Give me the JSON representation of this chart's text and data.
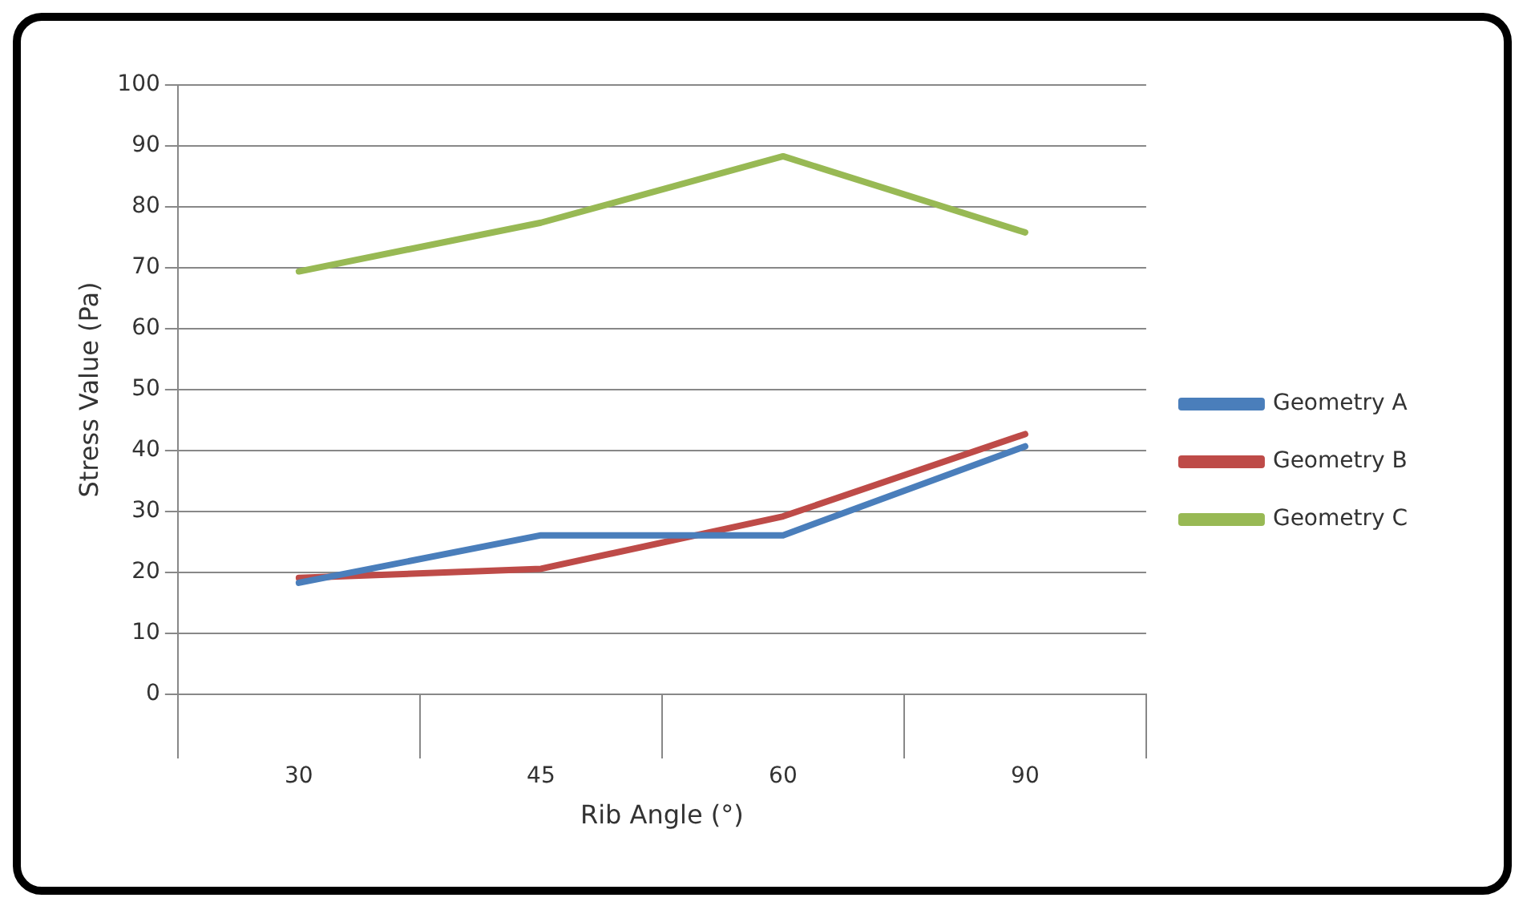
{
  "chart_data": {
    "type": "line",
    "xlabel": "Rib Angle (°)",
    "ylabel": "Stress Value (Pa)",
    "categories": [
      "30",
      "45",
      "60",
      "90"
    ],
    "series": [
      {
        "name": "Geometry A",
        "color": "#4a7ebb",
        "values": [
          18.3,
          26.1,
          26.1,
          40.7
        ]
      },
      {
        "name": "Geometry B",
        "color": "#be4b48",
        "values": [
          19.1,
          20.6,
          29.2,
          42.7
        ]
      },
      {
        "name": "Geometry C",
        "color": "#98b954",
        "values": [
          69.4,
          77.4,
          88.3,
          75.8
        ]
      }
    ],
    "ylim": [
      0,
      100
    ],
    "yticks": [
      0,
      10,
      20,
      30,
      40,
      50,
      60,
      70,
      80,
      90,
      100
    ],
    "grid": "y",
    "legend": "right",
    "marker": "none",
    "line_style": "solid"
  }
}
